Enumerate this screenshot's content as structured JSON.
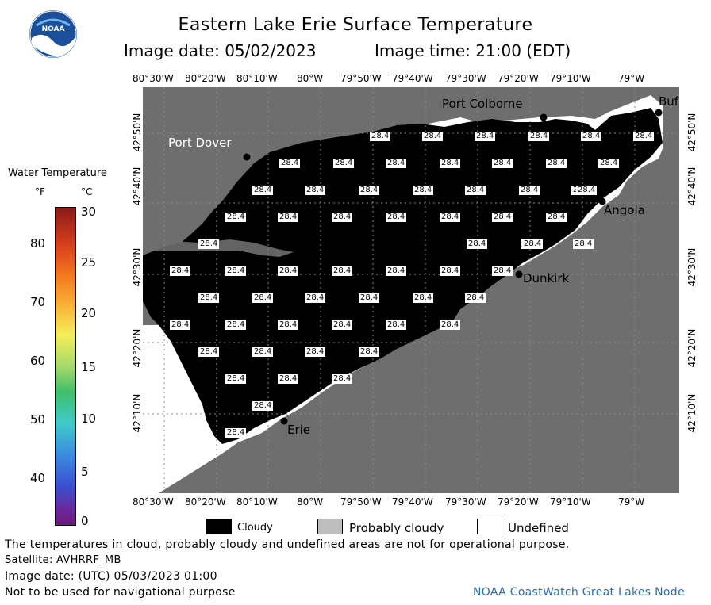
{
  "header": {
    "title": "Eastern Lake Erie Surface Temperature",
    "image_date_label": "Image date: 05/02/2023",
    "image_time_label": "Image time: 21:00 (EDT)"
  },
  "logo": {
    "text": "NOAA"
  },
  "colors": {
    "land": "#6e6e6e",
    "cloud": "#000000",
    "probably_cloudy": "#bdbdbd",
    "undefined": "#ffffff",
    "link": "#2a6db5"
  },
  "map": {
    "lon_labels": [
      "80°30'W",
      "80°20'W",
      "80°10'W",
      "80°W",
      "79°50'W",
      "79°40'W",
      "79°30'W",
      "79°20'W",
      "79°10'W",
      "79°W"
    ],
    "lat_labels": [
      "42°50'N",
      "42°40'N",
      "42°30'N",
      "42°20'N",
      "42°10'N"
    ],
    "cities": [
      {
        "name": "Port Colborne"
      },
      {
        "name": "Buf"
      },
      {
        "name": "Port Dover"
      },
      {
        "name": "Angola"
      },
      {
        "name": "Dunkirk"
      },
      {
        "name": "Erie"
      }
    ],
    "temp_value": "28.4"
  },
  "legend": {
    "title": "Water Temperature",
    "unit_f": "°F",
    "unit_c": "°C",
    "f_ticks": [
      "80",
      "70",
      "60",
      "50",
      "40"
    ],
    "c_ticks": [
      "30",
      "25",
      "20",
      "15",
      "10",
      "5",
      "0"
    ]
  },
  "key": {
    "cloudy": "Cloudy",
    "probably_cloudy": "Probably cloudy",
    "undefined": "Undefined"
  },
  "footer": {
    "note": "The temperatures in cloud, probably cloudy and undefined areas are not for operational purpose.",
    "satellite": "Satellite: AVHRRF_MB",
    "utc_date": "Image date: (UTC) 05/03/2023  01:00",
    "nav_warning": "Not to be used for navigational purpose",
    "node": "NOAA CoastWatch Great Lakes Node"
  }
}
